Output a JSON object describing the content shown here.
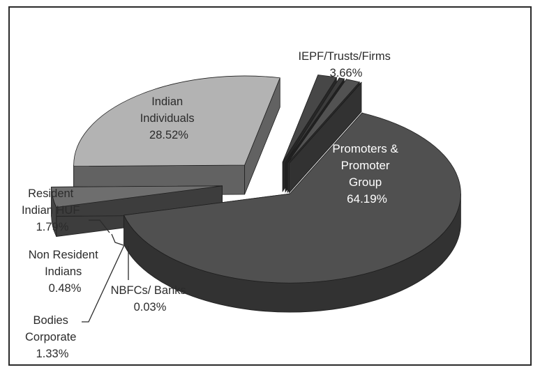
{
  "chart_data": {
    "type": "pie",
    "style": "3d-exploded",
    "slices": [
      {
        "label_lines": [
          "Promoters &",
          "Promoter",
          "Group"
        ],
        "value": 64.19,
        "value_text": "64.19%",
        "color": "#505050"
      },
      {
        "label_lines": [
          "IEPF/Trusts/Firms"
        ],
        "value": 3.66,
        "value_text": "3.66%",
        "color": "#6e6e6e"
      },
      {
        "label_lines": [
          "Indian",
          "Individuals"
        ],
        "value": 28.52,
        "value_text": "28.52%",
        "color": "#b3b3b3"
      },
      {
        "label_lines": [
          "Resident",
          "Indian HUF"
        ],
        "value": 1.79,
        "value_text": "1.79%",
        "color": "#474747"
      },
      {
        "label_lines": [
          "Non Resident",
          "Indians"
        ],
        "value": 0.48,
        "value_text": "0.48%",
        "color": "#3c3c3c"
      },
      {
        "label_lines": [
          "Bodies",
          "Corporate"
        ],
        "value": 1.33,
        "value_text": "1.33%",
        "color": "#525252"
      },
      {
        "label_lines": [
          "NBFCs/ Banks"
        ],
        "value": 0.03,
        "value_text": "0.03%",
        "color": "#5a5a5a"
      }
    ]
  }
}
